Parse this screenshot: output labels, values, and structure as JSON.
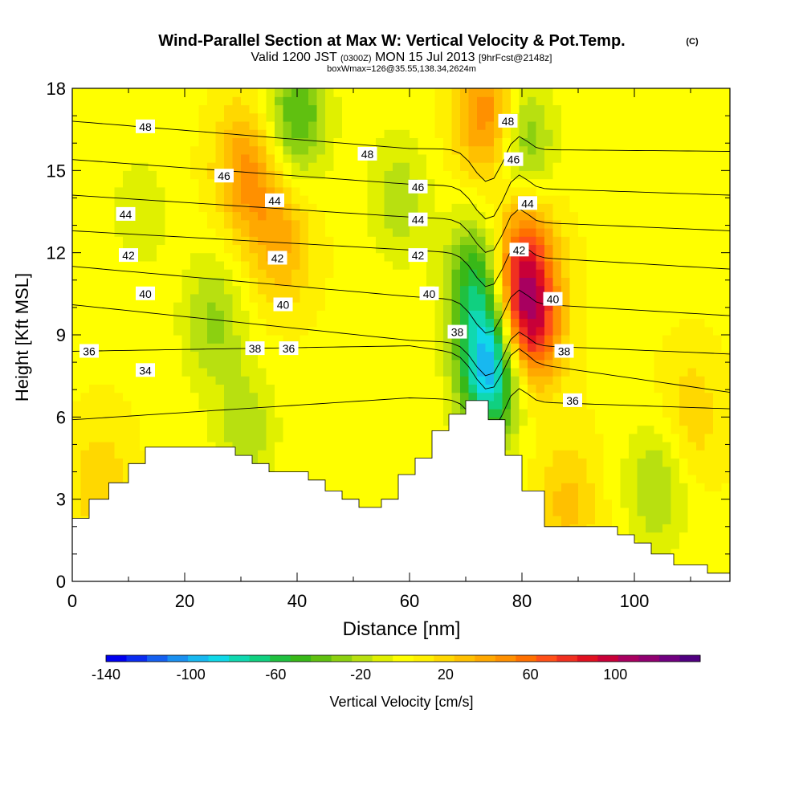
{
  "header": {
    "title": "Wind-Parallel Section at Max W: Vertical Velocity & Pot.Temp.",
    "copyright": "(C)",
    "valid_prefix": "Valid 1200 JST",
    "valid_utc": "(0300Z)",
    "valid_date": "MON 15 Jul 2013",
    "forecast": "[9hrFcst@2148z]",
    "box_info": "boxWmax=126@35.55,138.34,2624m"
  },
  "chart_data": {
    "type": "heatmap",
    "title": "Wind-Parallel Section at Max W: Vertical Velocity & Pot.Temp.",
    "xlabel": "Distance [nm]",
    "ylabel": "Height [Kft MSL]",
    "xlim": [
      0,
      117
    ],
    "ylim": [
      0,
      18
    ],
    "x_ticks": [
      "0",
      "20",
      "40",
      "60",
      "80",
      "100"
    ],
    "y_ticks": [
      "0",
      "3",
      "6",
      "9",
      "12",
      "15",
      "18"
    ],
    "colorbar": {
      "label": "Vertical Velocity [cm/s]",
      "tick_labels": [
        "-140",
        "-100",
        "-60",
        "-20",
        "20",
        "60",
        "100"
      ],
      "levels": [
        -140,
        -130,
        -120,
        -110,
        -100,
        -90,
        -80,
        -70,
        -60,
        -50,
        -40,
        -30,
        -20,
        -10,
        0,
        10,
        20,
        30,
        40,
        50,
        60,
        70,
        80,
        90,
        100,
        110,
        120,
        130,
        140
      ],
      "colors": [
        "#0000ee",
        "#0a2cf0",
        "#1560f0",
        "#1a90f0",
        "#18b8f0",
        "#10d8e8",
        "#10d8b0",
        "#10d080",
        "#20c040",
        "#38b818",
        "#60c010",
        "#8cd010",
        "#b8e010",
        "#e0f000",
        "#ffff00",
        "#fff000",
        "#ffd800",
        "#ffc000",
        "#ffa800",
        "#ff9000",
        "#ff7000",
        "#ff5018",
        "#f03020",
        "#e01020",
        "#c80038",
        "#a80060",
        "#900070",
        "#700080",
        "#500080"
      ]
    },
    "velocity_centers": [
      {
        "x": 40,
        "y": 17.0,
        "w": -50
      },
      {
        "x": 31,
        "y": 15.0,
        "w": 45
      },
      {
        "x": 37,
        "y": 12.5,
        "w": 35
      },
      {
        "x": 25,
        "y": 9.5,
        "w": -30
      },
      {
        "x": 12,
        "y": 13.5,
        "w": -15
      },
      {
        "x": 74,
        "y": 17.0,
        "w": 55
      },
      {
        "x": 80,
        "y": 16.0,
        "w": -45
      },
      {
        "x": 72,
        "y": 11.0,
        "w": -60
      },
      {
        "x": 74.5,
        "y": 7.8,
        "w": -110
      },
      {
        "x": 81,
        "y": 9.5,
        "w": 100
      },
      {
        "x": 80,
        "y": 12.0,
        "w": 60
      },
      {
        "x": 58,
        "y": 14.0,
        "w": -25
      },
      {
        "x": 104,
        "y": 3.5,
        "w": -30
      },
      {
        "x": 88,
        "y": 2.8,
        "w": 25
      },
      {
        "x": 5,
        "y": 3.5,
        "w": 20
      },
      {
        "x": 31,
        "y": 5.5,
        "w": -25
      },
      {
        "x": 110,
        "y": 6.0,
        "w": 20
      }
    ],
    "terrain": [
      [
        0,
        2.3
      ],
      [
        3,
        2.3
      ],
      [
        3,
        3.0
      ],
      [
        6.5,
        3.0
      ],
      [
        6.5,
        3.6
      ],
      [
        10,
        3.6
      ],
      [
        10,
        4.3
      ],
      [
        13,
        4.3
      ],
      [
        13,
        4.9
      ],
      [
        29,
        4.9
      ],
      [
        29,
        4.6
      ],
      [
        32,
        4.6
      ],
      [
        32,
        4.3
      ],
      [
        35,
        4.3
      ],
      [
        35,
        4.0
      ],
      [
        42,
        4.0
      ],
      [
        42,
        3.7
      ],
      [
        45,
        3.7
      ],
      [
        45,
        3.3
      ],
      [
        48,
        3.3
      ],
      [
        48,
        3.0
      ],
      [
        51,
        3.0
      ],
      [
        51,
        2.7
      ],
      [
        55,
        2.7
      ],
      [
        55,
        3.0
      ],
      [
        58,
        3.0
      ],
      [
        58,
        3.9
      ],
      [
        61,
        3.9
      ],
      [
        61,
        4.5
      ],
      [
        64,
        4.5
      ],
      [
        64,
        5.5
      ],
      [
        67,
        5.5
      ],
      [
        67,
        6.1
      ],
      [
        70,
        6.1
      ],
      [
        70,
        6.6
      ],
      [
        74,
        6.6
      ],
      [
        74,
        5.9
      ],
      [
        77,
        5.9
      ],
      [
        77,
        4.6
      ],
      [
        80,
        4.6
      ],
      [
        80,
        3.3
      ],
      [
        84,
        3.3
      ],
      [
        84,
        2.0
      ],
      [
        97,
        2.0
      ],
      [
        97,
        1.7
      ],
      [
        100,
        1.7
      ],
      [
        100,
        1.4
      ],
      [
        103,
        1.4
      ],
      [
        103,
        1.0
      ],
      [
        107,
        1.0
      ],
      [
        107,
        0.6
      ],
      [
        113,
        0.6
      ],
      [
        113,
        0.3
      ],
      [
        117,
        0.3
      ]
    ],
    "theta_levels": [
      {
        "label": "34",
        "y_left": 5.9,
        "y_mid": 6.7,
        "y_right": 6.3
      },
      {
        "label": "36",
        "y_left": 8.4,
        "y_mid": 8.6,
        "y_right": 6.9
      },
      {
        "label": "38",
        "y_left": 10.1,
        "y_mid": 8.8,
        "y_right": 8.3
      },
      {
        "label": "40",
        "y_left": 11.5,
        "y_mid": 10.4,
        "y_right": 9.7
      },
      {
        "label": "42",
        "y_left": 12.8,
        "y_mid": 12.1,
        "y_right": 11.4
      },
      {
        "label": "44",
        "y_left": 14.1,
        "y_mid": 13.3,
        "y_right": 12.8
      },
      {
        "label": "46",
        "y_left": 15.4,
        "y_mid": 14.5,
        "y_right": 14.1
      },
      {
        "label": "48",
        "y_left": 16.8,
        "y_mid": 15.8,
        "y_right": 15.7
      }
    ],
    "theta_labels": [
      {
        "text": "48",
        "x": 13,
        "y": 16.6
      },
      {
        "text": "48",
        "x": 52.5,
        "y": 15.6
      },
      {
        "text": "48",
        "x": 77.5,
        "y": 16.8
      },
      {
        "text": "46",
        "x": 27,
        "y": 14.8
      },
      {
        "text": "46",
        "x": 61.5,
        "y": 14.4
      },
      {
        "text": "46",
        "x": 78.5,
        "y": 15.4
      },
      {
        "text": "44",
        "x": 9.5,
        "y": 13.4
      },
      {
        "text": "44",
        "x": 36,
        "y": 13.9
      },
      {
        "text": "44",
        "x": 61.5,
        "y": 13.2
      },
      {
        "text": "44",
        "x": 81,
        "y": 13.8
      },
      {
        "text": "42",
        "x": 10,
        "y": 11.9
      },
      {
        "text": "42",
        "x": 36.5,
        "y": 11.8
      },
      {
        "text": "42",
        "x": 61.5,
        "y": 11.9
      },
      {
        "text": "42",
        "x": 79.5,
        "y": 12.1
      },
      {
        "text": "40",
        "x": 13,
        "y": 10.5
      },
      {
        "text": "40",
        "x": 37.5,
        "y": 10.1
      },
      {
        "text": "40",
        "x": 63.5,
        "y": 10.5
      },
      {
        "text": "40",
        "x": 85.5,
        "y": 10.3
      },
      {
        "text": "38",
        "x": 32.5,
        "y": 8.5
      },
      {
        "text": "38",
        "x": 68.5,
        "y": 9.1
      },
      {
        "text": "38",
        "x": 87.5,
        "y": 8.4
      },
      {
        "text": "36",
        "x": 3,
        "y": 8.4
      },
      {
        "text": "36",
        "x": 38.5,
        "y": 8.5
      },
      {
        "text": "36",
        "x": 89,
        "y": 6.6
      },
      {
        "text": "34",
        "x": 13,
        "y": 7.7
      }
    ]
  }
}
